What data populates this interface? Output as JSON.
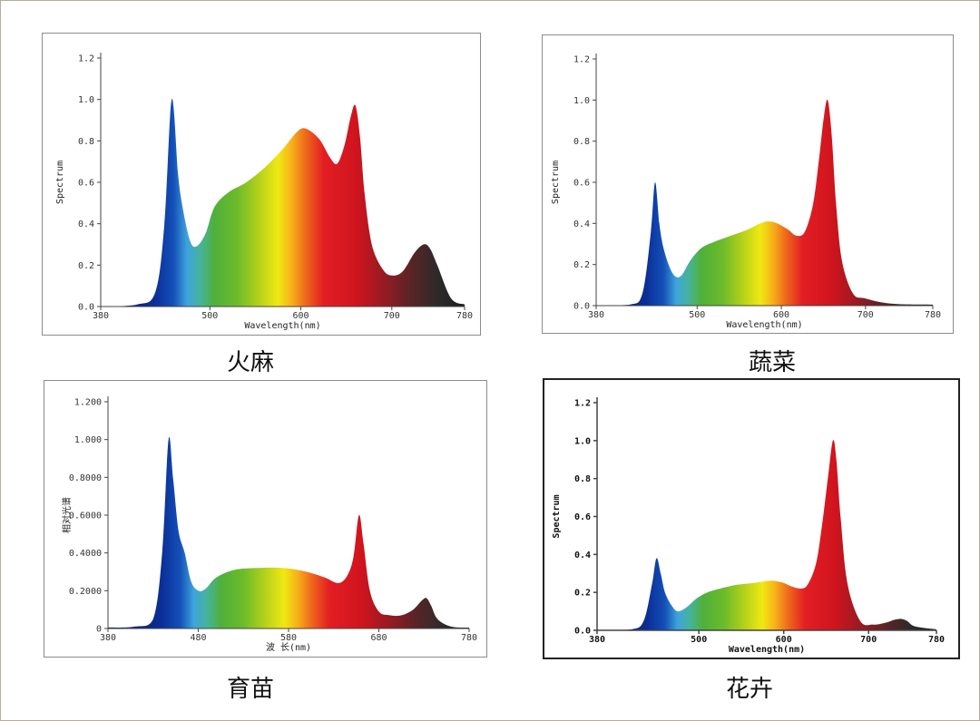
{
  "chart_data": [
    {
      "type": "area",
      "caption": "火麻",
      "xlabel": "Wavelength(nm)",
      "ylabel": "Spectrum",
      "xlim": [
        380,
        780
      ],
      "ylim": [
        0,
        1.2
      ],
      "xticks": [
        380,
        500,
        600,
        700,
        780
      ],
      "yticks": [
        "0.0",
        "0.2",
        "0.4",
        "0.6",
        "0.8",
        "1.0",
        "1.2"
      ],
      "x": [
        380,
        420,
        440,
        450,
        458,
        465,
        470,
        478,
        485,
        495,
        505,
        520,
        540,
        560,
        580,
        595,
        605,
        620,
        632,
        640,
        648,
        655,
        660,
        665,
        670,
        678,
        690,
        700,
        712,
        725,
        735,
        742,
        750,
        765,
        780
      ],
      "y": [
        0,
        0.01,
        0.07,
        0.4,
        1.0,
        0.64,
        0.48,
        0.32,
        0.29,
        0.35,
        0.48,
        0.55,
        0.6,
        0.67,
        0.76,
        0.84,
        0.86,
        0.81,
        0.72,
        0.69,
        0.78,
        0.92,
        0.97,
        0.82,
        0.55,
        0.3,
        0.18,
        0.15,
        0.17,
        0.26,
        0.3,
        0.28,
        0.2,
        0.04,
        0.01
      ]
    },
    {
      "type": "area",
      "caption": "蔬菜",
      "xlabel": "Wavelength(nm)",
      "ylabel": "Spectrum",
      "xlim": [
        380,
        780
      ],
      "ylim": [
        0,
        1.2
      ],
      "xticks": [
        380,
        500,
        600,
        700,
        780
      ],
      "yticks": [
        "0.0",
        "0.2",
        "0.4",
        "0.6",
        "0.8",
        "1.0",
        "1.2"
      ],
      "x": [
        380,
        420,
        435,
        445,
        450,
        455,
        460,
        468,
        475,
        482,
        492,
        505,
        520,
        540,
        560,
        575,
        585,
        595,
        608,
        618,
        628,
        638,
        645,
        650,
        655,
        660,
        665,
        672,
        685,
        700,
        730,
        780
      ],
      "y": [
        0,
        0.005,
        0.06,
        0.36,
        0.6,
        0.4,
        0.28,
        0.18,
        0.14,
        0.15,
        0.22,
        0.28,
        0.31,
        0.34,
        0.37,
        0.4,
        0.41,
        0.4,
        0.37,
        0.34,
        0.36,
        0.5,
        0.72,
        0.9,
        1.0,
        0.82,
        0.5,
        0.22,
        0.06,
        0.035,
        0.01,
        0.005
      ]
    },
    {
      "type": "area",
      "caption": "育苗",
      "xlabel": "波 长(nm)",
      "ylabel": "相对光谱",
      "xlim": [
        380,
        780
      ],
      "ylim": [
        0,
        1.2
      ],
      "xticks": [
        380,
        480,
        580,
        680,
        780
      ],
      "yticks": [
        "0",
        "0.2000",
        "0.4000",
        "0.6000",
        "0.8000",
        "1.000",
        "1.200"
      ],
      "x": [
        380,
        410,
        430,
        440,
        447,
        452,
        458,
        465,
        472,
        480,
        488,
        500,
        520,
        545,
        575,
        600,
        620,
        635,
        645,
        652,
        658,
        663,
        670,
        680,
        692,
        705,
        718,
        728,
        733,
        738,
        745,
        760,
        780
      ],
      "y": [
        0.005,
        0.01,
        0.05,
        0.4,
        1.0,
        0.8,
        0.52,
        0.4,
        0.25,
        0.2,
        0.21,
        0.27,
        0.31,
        0.32,
        0.32,
        0.3,
        0.27,
        0.24,
        0.28,
        0.38,
        0.6,
        0.45,
        0.2,
        0.09,
        0.07,
        0.07,
        0.1,
        0.15,
        0.16,
        0.12,
        0.05,
        0.01,
        0.005
      ]
    },
    {
      "type": "area",
      "caption": "花卉",
      "xlabel": "Wavelength(nm)",
      "ylabel": "Spectrum",
      "xlim": [
        380,
        780
      ],
      "ylim": [
        0,
        1.2
      ],
      "xticks": [
        380,
        500,
        600,
        700,
        780
      ],
      "yticks": [
        "0.0",
        "0.2",
        "0.4",
        "0.6",
        "0.8",
        "1.0",
        "1.2"
      ],
      "x": [
        380,
        420,
        435,
        445,
        450,
        455,
        460,
        468,
        475,
        485,
        498,
        510,
        525,
        545,
        565,
        580,
        590,
        600,
        610,
        620,
        628,
        638,
        645,
        652,
        658,
        662,
        667,
        675,
        690,
        705,
        720,
        730,
        738,
        745,
        755,
        780
      ],
      "y": [
        0,
        0.005,
        0.05,
        0.25,
        0.38,
        0.3,
        0.2,
        0.13,
        0.1,
        0.12,
        0.17,
        0.2,
        0.22,
        0.24,
        0.25,
        0.26,
        0.26,
        0.25,
        0.23,
        0.22,
        0.24,
        0.35,
        0.55,
        0.8,
        1.0,
        0.9,
        0.6,
        0.25,
        0.05,
        0.03,
        0.04,
        0.055,
        0.06,
        0.05,
        0.02,
        0.005
      ]
    }
  ]
}
